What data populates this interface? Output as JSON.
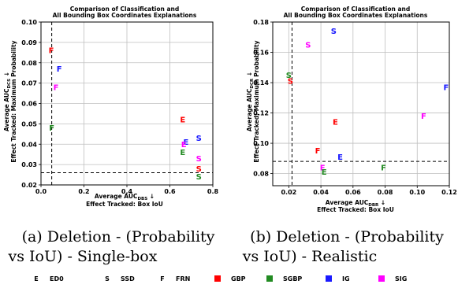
{
  "colors": {
    "GBP": "#ff0000",
    "SGBP": "#228b22",
    "IG": "#1a1aff",
    "SIG": "#ff00ff",
    "black": "#000000",
    "grid": "#bfbfbf"
  },
  "legend": [
    {
      "glyph": "E",
      "label": "ED0",
      "kind": "letter"
    },
    {
      "glyph": "S",
      "label": "SSD",
      "kind": "letter"
    },
    {
      "glyph": "F",
      "label": "FRN",
      "kind": "letter"
    },
    {
      "label": "GBP",
      "kind": "color",
      "color": "#ff0000"
    },
    {
      "label": "SGBP",
      "kind": "color",
      "color": "#228b22"
    },
    {
      "label": "IG",
      "kind": "color",
      "color": "#1a1aff"
    },
    {
      "label": "SIG",
      "kind": "color",
      "color": "#ff00ff"
    }
  ],
  "chart_data": [
    {
      "type": "scatter",
      "title_line1": "Comparison of Classification and",
      "title_line2": "All Bounding Box Coordinates Explanations",
      "xlabel_line1": "Average AUC",
      "xlabel_sub": "DBS",
      "xlabel_arrow": " ↓",
      "xlabel_line2": "Effect Tracked: Box IoU",
      "ylabel_line1": "Average AUC",
      "ylabel_sub": "DCS",
      "ylabel_arrow": " ↓",
      "ylabel_line2": "Effect Tracked: Maximum Probability",
      "xlim": [
        0.0,
        0.8
      ],
      "ylim": [
        0.02,
        0.1
      ],
      "xticks": [
        0.0,
        0.2,
        0.4,
        0.6,
        0.8
      ],
      "xtick_labels": [
        "0.0",
        "0.2",
        "0.4",
        "0.6",
        "0.8"
      ],
      "yticks": [
        0.02,
        0.03,
        0.04,
        0.05,
        0.06,
        0.07,
        0.08,
        0.09,
        0.1
      ],
      "ytick_labels": [
        "0.02",
        "0.03",
        "0.04",
        "0.05",
        "0.06",
        "0.07",
        "0.08",
        "0.09",
        "0.10"
      ],
      "grid": true,
      "ref_x": 0.05,
      "ref_y": 0.026,
      "points": [
        {
          "m": "F",
          "e": "GBP",
          "x": 0.048,
          "y": 0.086
        },
        {
          "m": "F",
          "e": "IG",
          "x": 0.085,
          "y": 0.077
        },
        {
          "m": "F",
          "e": "SIG",
          "x": 0.07,
          "y": 0.068
        },
        {
          "m": "F",
          "e": "SGBP",
          "x": 0.05,
          "y": 0.048
        },
        {
          "m": "E",
          "e": "GBP",
          "x": 0.66,
          "y": 0.052
        },
        {
          "m": "E",
          "e": "IG",
          "x": 0.675,
          "y": 0.041
        },
        {
          "m": "E",
          "e": "SIG",
          "x": 0.665,
          "y": 0.04
        },
        {
          "m": "E",
          "e": "SGBP",
          "x": 0.66,
          "y": 0.036
        },
        {
          "m": "S",
          "e": "IG",
          "x": 0.735,
          "y": 0.043
        },
        {
          "m": "S",
          "e": "SIG",
          "x": 0.735,
          "y": 0.033
        },
        {
          "m": "S",
          "e": "GBP",
          "x": 0.735,
          "y": 0.028
        },
        {
          "m": "S",
          "e": "SGBP",
          "x": 0.735,
          "y": 0.024
        }
      ],
      "caption_line1": "(a) Deletion - (Probability",
      "caption_line2": "vs IoU) - Single-box"
    },
    {
      "type": "scatter",
      "title_line1": "Comparison of Classification and",
      "title_line2": "All Bounding Box Coordinates Explanations",
      "xlabel_line1": "Average AUC",
      "xlabel_sub": "DBR",
      "xlabel_arrow": " ↓",
      "xlabel_line2": "Effect Tracked: Box IoU",
      "ylabel_line1": "Average AUC",
      "ylabel_sub": "DCR",
      "ylabel_arrow": " ↓",
      "ylabel_line2": "Effect Tracked: Maximum Probability",
      "xlim": [
        0.01,
        0.12
      ],
      "ylim": [
        0.072,
        0.18
      ],
      "xticks": [
        0.02,
        0.04,
        0.06,
        0.08,
        0.1,
        0.12
      ],
      "xtick_labels": [
        "0.02",
        "0.04",
        "0.06",
        "0.08",
        "0.10",
        "0.12"
      ],
      "yticks": [
        0.08,
        0.1,
        0.12,
        0.14,
        0.16,
        0.18
      ],
      "ytick_labels": [
        "0.08",
        "0.10",
        "0.12",
        "0.14",
        "0.16",
        "0.18"
      ],
      "grid": true,
      "ref_x": 0.022,
      "ref_y": 0.088,
      "points": [
        {
          "m": "S",
          "e": "IG",
          "x": 0.048,
          "y": 0.174
        },
        {
          "m": "S",
          "e": "SIG",
          "x": 0.032,
          "y": 0.165
        },
        {
          "m": "S",
          "e": "SGBP",
          "x": 0.02,
          "y": 0.145
        },
        {
          "m": "S",
          "e": "GBP",
          "x": 0.021,
          "y": 0.141
        },
        {
          "m": "F",
          "e": "IG",
          "x": 0.118,
          "y": 0.137
        },
        {
          "m": "F",
          "e": "SIG",
          "x": 0.104,
          "y": 0.118
        },
        {
          "m": "E",
          "e": "GBP",
          "x": 0.049,
          "y": 0.114
        },
        {
          "m": "F",
          "e": "GBP",
          "x": 0.038,
          "y": 0.095
        },
        {
          "m": "E",
          "e": "IG",
          "x": 0.052,
          "y": 0.091
        },
        {
          "m": "F",
          "e": "SGBP",
          "x": 0.079,
          "y": 0.084
        },
        {
          "m": "E",
          "e": "SIG",
          "x": 0.041,
          "y": 0.084
        },
        {
          "m": "E",
          "e": "SGBP",
          "x": 0.042,
          "y": 0.081
        }
      ],
      "caption_line1": "(b) Deletion - (Probability",
      "caption_line2": "vs IoU) - Realistic"
    }
  ]
}
